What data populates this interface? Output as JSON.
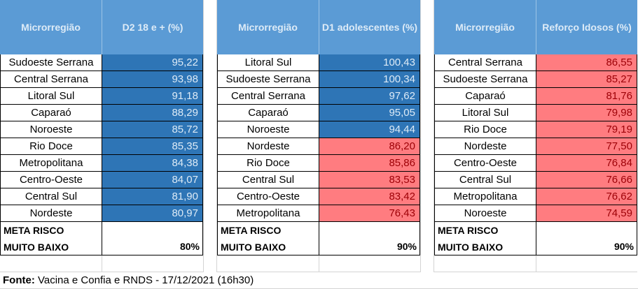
{
  "tables": [
    {
      "header": [
        "Microrregião",
        "D2 18 e + (%)"
      ],
      "rows": [
        [
          "Sudoeste Serrana",
          "95,22",
          "blue"
        ],
        [
          "Central Serrana",
          "93,98",
          "blue"
        ],
        [
          "Litoral Sul",
          "91,18",
          "blue"
        ],
        [
          "Caparaó",
          "88,29",
          "blue"
        ],
        [
          "Noroeste",
          "85,72",
          "blue"
        ],
        [
          "Rio Doce",
          "85,35",
          "blue"
        ],
        [
          "Metropolitana",
          "84,38",
          "blue"
        ],
        [
          "Centro-Oeste",
          "84,07",
          "blue"
        ],
        [
          "Central Sul",
          "81,90",
          "blue"
        ],
        [
          "Nordeste",
          "80,97",
          "blue"
        ]
      ],
      "meta_label": [
        "META RISCO",
        "MUITO BAIXO"
      ],
      "meta_value": "80%"
    },
    {
      "header": [
        "Microrregião",
        "D1 adolescentes (%)"
      ],
      "rows": [
        [
          "Litoral Sul",
          "100,43",
          "blue"
        ],
        [
          "Sudoeste Serrana",
          "100,34",
          "blue"
        ],
        [
          "Central Serrana",
          "97,62",
          "blue"
        ],
        [
          "Caparaó",
          "95,05",
          "blue"
        ],
        [
          "Noroeste",
          "94,44",
          "blue"
        ],
        [
          "Nordeste",
          "86,20",
          "pink"
        ],
        [
          "Rio Doce",
          "85,86",
          "pink"
        ],
        [
          "Central Sul",
          "83,53",
          "pink"
        ],
        [
          "Centro-Oeste",
          "83,42",
          "pink"
        ],
        [
          "Metropolitana",
          "76,43",
          "pink"
        ]
      ],
      "meta_label": [
        "META RISCO",
        "MUITO BAIXO"
      ],
      "meta_value": "90%"
    },
    {
      "header": [
        "Microrregião",
        "Reforço Idosos (%)"
      ],
      "rows": [
        [
          "Central Serrana",
          "86,55",
          "pink"
        ],
        [
          "Sudoeste Serrana",
          "85,27",
          "pink"
        ],
        [
          "Caparaó",
          "81,76",
          "pink"
        ],
        [
          "Litoral Sul",
          "79,98",
          "pink"
        ],
        [
          "Rio Doce",
          "79,19",
          "pink"
        ],
        [
          "Nordeste",
          "77,50",
          "pink"
        ],
        [
          "Centro-Oeste",
          "76,84",
          "pink"
        ],
        [
          "Central Sul",
          "76,66",
          "pink"
        ],
        [
          "Metropolitana",
          "76,62",
          "pink"
        ],
        [
          "Noroeste",
          "74,59",
          "pink"
        ]
      ],
      "meta_label": [
        "META RISCO",
        "MUITO BAIXO"
      ],
      "meta_value": "90%"
    }
  ],
  "colors": {
    "header": "#5b9bd5",
    "above_goal": "#2e75b6",
    "below_goal": "#ff7c80"
  },
  "footer": {
    "label": "Fonte:",
    "text": " Vacina e Confia e RNDS - 17/12/2021 (16h30)"
  }
}
